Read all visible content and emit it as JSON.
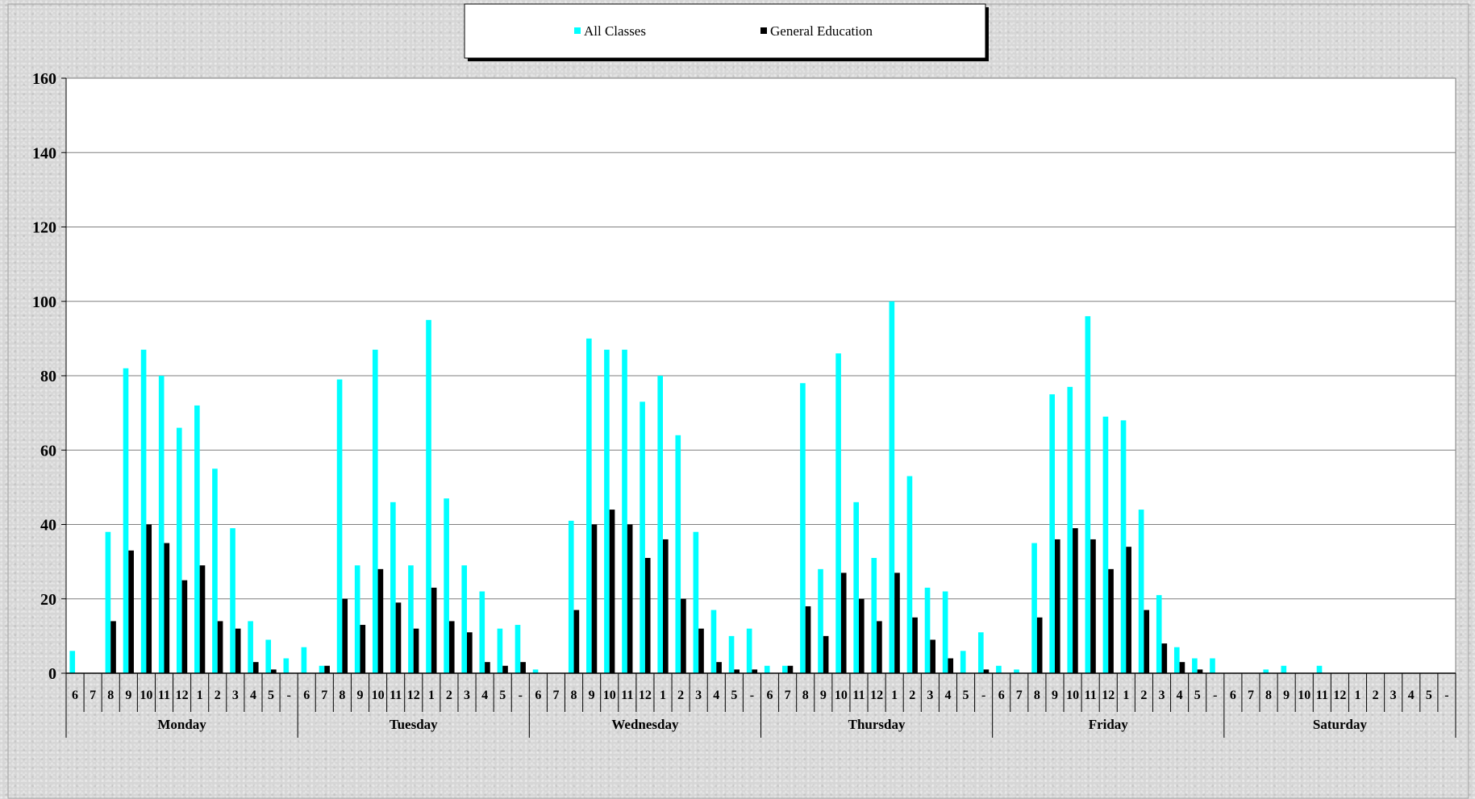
{
  "chart_data": {
    "type": "bar",
    "title": "",
    "xlabel": "",
    "ylabel": "",
    "ylim": [
      0,
      160
    ],
    "yticks": [
      0,
      20,
      40,
      60,
      80,
      100,
      120,
      140,
      160
    ],
    "grid": true,
    "legend_position": "top-center",
    "days": [
      "Monday",
      "Tuesday",
      "Wednesday",
      "Thursday",
      "Friday",
      "Saturday"
    ],
    "hours": [
      "6",
      "7",
      "8",
      "9",
      "10",
      "11",
      "12",
      "1",
      "2",
      "3",
      "4",
      "5",
      "-"
    ],
    "series": [
      {
        "name": "All Classes",
        "color": "#00FFFF",
        "values": [
          6,
          0,
          38,
          82,
          87,
          80,
          66,
          72,
          55,
          39,
          14,
          9,
          4,
          7,
          2,
          79,
          29,
          87,
          46,
          29,
          95,
          47,
          29,
          22,
          12,
          13,
          1,
          0,
          41,
          90,
          87,
          87,
          73,
          80,
          64,
          38,
          17,
          10,
          12,
          2,
          2,
          78,
          28,
          86,
          46,
          31,
          100,
          53,
          23,
          22,
          6,
          11,
          2,
          1,
          35,
          75,
          77,
          96,
          69,
          68,
          44,
          21,
          7,
          4,
          4,
          0,
          0,
          1,
          2,
          0,
          2,
          0,
          0,
          0,
          0,
          0,
          0,
          0
        ]
      },
      {
        "name": "General Education",
        "color": "#000000",
        "values": [
          0,
          0,
          14,
          33,
          40,
          35,
          25,
          29,
          14,
          12,
          3,
          1,
          0,
          0,
          2,
          20,
          13,
          28,
          19,
          12,
          23,
          14,
          11,
          3,
          2,
          3,
          0,
          0,
          17,
          40,
          44,
          40,
          31,
          36,
          20,
          12,
          3,
          1,
          1,
          0,
          2,
          18,
          10,
          27,
          20,
          14,
          27,
          15,
          9,
          4,
          0,
          1,
          0,
          0,
          15,
          36,
          39,
          36,
          28,
          34,
          17,
          8,
          3,
          1,
          0,
          0,
          0,
          0,
          0,
          0,
          0,
          0,
          0,
          0,
          0,
          0,
          0,
          0
        ]
      }
    ]
  }
}
